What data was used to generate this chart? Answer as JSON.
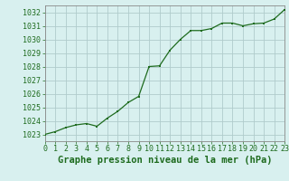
{
  "x": [
    0,
    1,
    2,
    3,
    4,
    5,
    6,
    7,
    8,
    9,
    10,
    11,
    12,
    13,
    14,
    15,
    16,
    17,
    18,
    19,
    20,
    21,
    22,
    23
  ],
  "y": [
    1023.0,
    1023.2,
    1023.5,
    1023.7,
    1023.8,
    1023.6,
    1024.2,
    1024.7,
    1025.35,
    1025.8,
    1028.0,
    1028.05,
    1029.2,
    1030.0,
    1030.65,
    1030.65,
    1030.8,
    1031.2,
    1031.2,
    1031.0,
    1031.15,
    1031.2,
    1031.5,
    1032.2
  ],
  "line_color": "#1e6b1e",
  "marker_color": "#1e6b1e",
  "bg_color": "#d8f0ef",
  "grid_color": "#b0cccc",
  "title": "Graphe pression niveau de la mer (hPa)",
  "xlim": [
    0,
    23
  ],
  "ylim": [
    1022.5,
    1032.5
  ],
  "yticks": [
    1023,
    1024,
    1025,
    1026,
    1027,
    1028,
    1029,
    1030,
    1031,
    1032
  ],
  "xticks": [
    0,
    1,
    2,
    3,
    4,
    5,
    6,
    7,
    8,
    9,
    10,
    11,
    12,
    13,
    14,
    15,
    16,
    17,
    18,
    19,
    20,
    21,
    22,
    23
  ],
  "title_fontsize": 7.5,
  "tick_fontsize": 6.0,
  "title_color": "#1e6b1e",
  "tick_color": "#1e6b1e",
  "spine_color": "#888888"
}
